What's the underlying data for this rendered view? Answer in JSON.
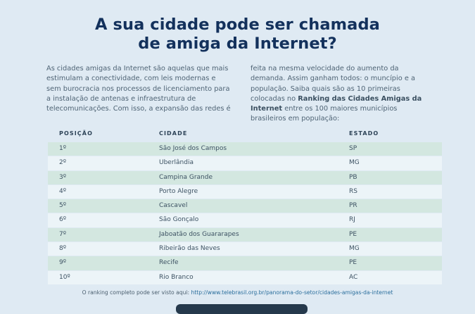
{
  "title": {
    "line1": "A sua cidade pode ser chamada",
    "line2": "de amiga da Internet?"
  },
  "intro": {
    "left": "As cidades amigas da Internet são aquelas que mais estimulam a conectividade, com leis modernas e sem burocracia nos processos de licenciamento para a instalação de antenas e infraestrutura de telecomunicações. Com isso, a expansão das redes é",
    "right_before": "feita na mesma velocidade do aumento da demanda. Assim ganham todos: o muncípio e a população. Saiba quais são as 10 primeiras colocadas no ",
    "right_bold": "Ranking das Cidades Amigas da Internet",
    "right_after": " entre os 100 maiores municípios brasileiros em população:"
  },
  "table": {
    "headers": {
      "position": "POSIÇÃO",
      "city": "CIDADE",
      "state": "ESTADO"
    },
    "rows": [
      {
        "position": "1º",
        "city": "São José dos Campos",
        "state": "SP"
      },
      {
        "position": "2º",
        "city": "Uberlândia",
        "state": "MG"
      },
      {
        "position": "3º",
        "city": "Campina Grande",
        "state": "PB"
      },
      {
        "position": "4º",
        "city": "Porto Alegre",
        "state": "RS"
      },
      {
        "position": "5º",
        "city": "Cascavel",
        "state": "PR"
      },
      {
        "position": "6º",
        "city": "São Gonçalo",
        "state": "RJ"
      },
      {
        "position": "7º",
        "city": "Jaboatão dos Guararapes",
        "state": "PE"
      },
      {
        "position": "8º",
        "city": "Ribeirão das Neves",
        "state": "MG"
      },
      {
        "position": "9º",
        "city": "Recife",
        "state": "PE"
      },
      {
        "position": "10º",
        "city": "Rio Branco",
        "state": "AC"
      }
    ]
  },
  "footer": {
    "text": "O ranking completo pode ser visto aqui: ",
    "link": "http://www.telebrasil.org.br/panorama-do-setor/cidades-amigas-da-internet"
  }
}
